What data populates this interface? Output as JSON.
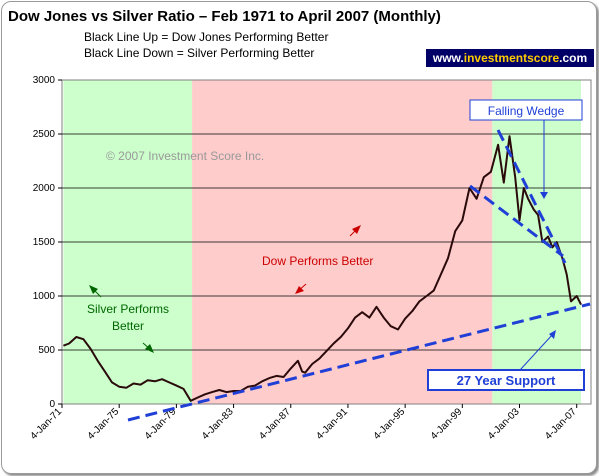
{
  "chart_data": {
    "type": "line",
    "title": "Dow Jones vs Silver Ratio – Feb 1971 to April 2007 (Monthly)",
    "subtitle": [
      "Black Line Up = Dow Jones Performing Better",
      "Black Line Down = Silver Performing Better"
    ],
    "ylim": [
      0,
      3000
    ],
    "y_ticks": [
      "0",
      "500",
      "1000",
      "1500",
      "2000",
      "2500",
      "3000"
    ],
    "x_ticks": [
      "4-Jan-71",
      "4-Jan-75",
      "4-Jan-79",
      "4-Jan-83",
      "4-Jan-87",
      "4-Jan-91",
      "4-Jan-95",
      "4-Jan-99",
      "4-Jan-03",
      "4-Jan-07"
    ],
    "x_range": [
      1971.0,
      2008.0
    ],
    "grid": true,
    "line_color": "#2a0a0a",
    "regions": [
      {
        "from": 1971.1,
        "to": 1980.1,
        "color": "#ccffcc"
      },
      {
        "from": 1980.1,
        "to": 2001.1,
        "color": "#ffcccc"
      },
      {
        "from": 2001.1,
        "to": 2007.3,
        "color": "#ccffcc"
      }
    ],
    "series": [
      {
        "x": [
          1971.1,
          1971.5,
          1972.0,
          1972.5,
          1973.0,
          1973.5,
          1974.0,
          1974.5,
          1975.0,
          1975.5,
          1976.0,
          1976.5,
          1977.0,
          1977.5,
          1978.0,
          1978.5,
          1979.0,
          1979.5,
          1980.0,
          1980.5,
          1981.0,
          1981.5,
          1982.0,
          1982.5,
          1983.0,
          1983.5,
          1984.0,
          1984.5,
          1985.0,
          1985.5,
          1986.0,
          1986.5,
          1987.0,
          1987.5,
          1987.8,
          1988.0,
          1988.5,
          1989.0,
          1989.5,
          1990.0,
          1990.5,
          1991.0,
          1991.5,
          1992.0,
          1992.5,
          1993.0,
          1993.5,
          1994.0,
          1994.5,
          1995.0,
          1995.5,
          1996.0,
          1996.5,
          1997.0,
          1997.5,
          1998.0,
          1998.5,
          1999.0,
          1999.5,
          2000.0,
          2000.5,
          2001.0,
          2001.5,
          2001.9,
          2002.3,
          2002.7,
          2003.0,
          2003.3,
          2003.6,
          2004.0,
          2004.3,
          2004.6,
          2005.0,
          2005.3,
          2005.6,
          2006.0,
          2006.3,
          2006.6,
          2007.0,
          2007.3
        ],
        "y": [
          540,
          560,
          620,
          600,
          510,
          400,
          300,
          200,
          160,
          150,
          190,
          180,
          220,
          210,
          230,
          200,
          170,
          140,
          30,
          60,
          90,
          110,
          130,
          110,
          120,
          120,
          160,
          170,
          210,
          240,
          260,
          250,
          330,
          400,
          300,
          290,
          370,
          420,
          490,
          560,
          620,
          700,
          800,
          850,
          800,
          900,
          800,
          720,
          690,
          790,
          860,
          950,
          1000,
          1050,
          1200,
          1350,
          1600,
          1700,
          2000,
          1900,
          2100,
          2150,
          2400,
          2050,
          2480,
          2100,
          1700,
          2000,
          1900,
          1800,
          1750,
          1500,
          1550,
          1450,
          1500,
          1350,
          1200,
          950,
          1000,
          920
        ]
      }
    ],
    "annotations": {
      "watermark": "© 2007 Investment Score Inc.",
      "dow_label": "Dow Performs Better",
      "silver_label": "Silver Performs Better",
      "wedge_label": "Falling Wedge",
      "support_label": "27 Year Support"
    },
    "brand": {
      "prefix": "www.",
      "highlight": "investmentscore",
      "suffix": ".com"
    }
  }
}
